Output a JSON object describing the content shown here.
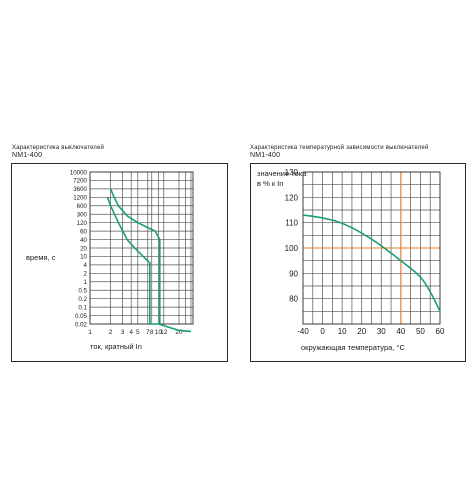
{
  "left_panel": {
    "heading_line1": "Характеристика выключателей",
    "heading_line2": "NM1-400"
  },
  "right_panel": {
    "heading_line1": "Характеристика температурной зависимости выключателей",
    "heading_line2": "NM1-400"
  },
  "chart_data": [
    {
      "type": "line",
      "title": "Характеристика выключателей NM1-400",
      "xlabel": "ток, кратный In",
      "ylabel": "время, с",
      "x_ticks": [
        "1",
        "2",
        "3",
        "4",
        "5",
        "7",
        "8",
        "10",
        "12",
        "20"
      ],
      "y_ticks": [
        "10000",
        "7200",
        "3600",
        "1200",
        "600",
        "300",
        "120",
        "60",
        "40",
        "20",
        "10",
        "4",
        "2",
        "1",
        "0.5",
        "0.2",
        "0.1",
        "0.05",
        "0.02"
      ],
      "series": [
        {
          "curve": "upper",
          "points": [
            [
              2.0,
              3600
            ],
            [
              2.2,
              1500
            ],
            [
              2.6,
              600
            ],
            [
              3.5,
              250
            ],
            [
              5,
              120
            ],
            [
              7,
              80
            ],
            [
              9,
              60
            ],
            [
              10.5,
              40
            ],
            [
              10.5,
              0.02
            ]
          ]
        },
        {
          "curve": "lower",
          "points": [
            [
              1.8,
              1200
            ],
            [
              2.0,
              600
            ],
            [
              2.6,
              120
            ],
            [
              3.5,
              40
            ],
            [
              4.5,
              20
            ],
            [
              6,
              10
            ],
            [
              7.5,
              5
            ],
            [
              7.5,
              0.02
            ],
            [
              10,
              0.02
            ],
            [
              20,
              0.01
            ],
            [
              30,
              0.009
            ]
          ]
        }
      ],
      "line_color": "#1a9e78",
      "grid": true
    },
    {
      "type": "line",
      "title": "Характеристика температурной зависимости выключателей NM1-400",
      "xlabel": "окружающая температура, °С",
      "ylabel": "значение тока в % к In",
      "x": [
        -40,
        0,
        10,
        20,
        30,
        40,
        50,
        55,
        60
      ],
      "y": [
        113,
        112,
        110,
        106,
        101,
        95,
        89,
        83,
        75
      ],
      "x_ticks": [
        "-40",
        "0",
        "10",
        "20",
        "30",
        "40",
        "50",
        "60"
      ],
      "y_ticks": [
        "130",
        "120",
        "110",
        "100",
        "90",
        "80"
      ],
      "ylim": [
        70,
        130
      ],
      "reference_lines": {
        "x": 40,
        "y": 100
      },
      "line_color": "#1a9e78",
      "reference_color": "#e07b2a",
      "grid": true
    }
  ]
}
